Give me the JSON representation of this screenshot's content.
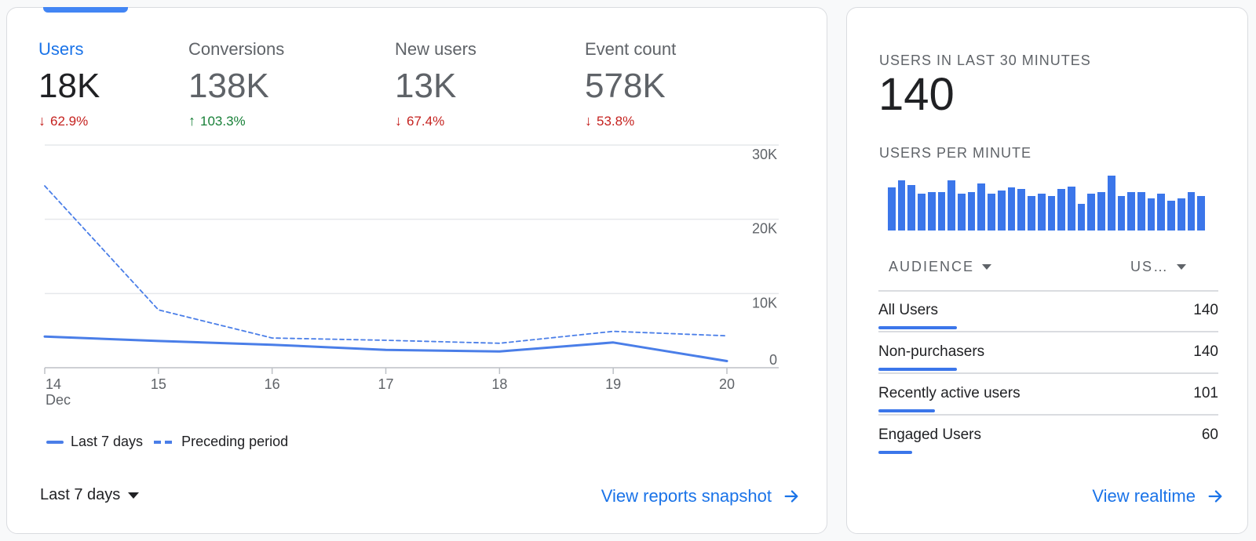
{
  "overview": {
    "metrics": [
      {
        "label": "Users",
        "value": "18K",
        "delta": "62.9%",
        "direction": "down",
        "active": true
      },
      {
        "label": "Conversions",
        "value": "138K",
        "delta": "103.3%",
        "direction": "up",
        "active": false
      },
      {
        "label": "New users",
        "value": "13K",
        "delta": "67.4%",
        "direction": "down",
        "active": false
      },
      {
        "label": "Event count",
        "value": "578K",
        "delta": "53.8%",
        "direction": "down",
        "active": false
      }
    ],
    "legend": {
      "current": "Last 7 days",
      "previous": "Preceding period"
    },
    "date_range": "Last 7 days",
    "snapshot_link": "View reports snapshot"
  },
  "chart_data": {
    "type": "line",
    "x": [
      "14",
      "15",
      "16",
      "17",
      "18",
      "19",
      "20"
    ],
    "x_sublabel": "Dec",
    "y_ticks": [
      "30K",
      "20K",
      "10K",
      "0"
    ],
    "ylim": [
      0,
      30000
    ],
    "series": [
      {
        "name": "Last 7 days",
        "style": "solid",
        "values": [
          4200,
          3600,
          3100,
          2400,
          2200,
          3400,
          900
        ]
      },
      {
        "name": "Preceding period",
        "style": "dashed",
        "values": [
          24500,
          7800,
          4000,
          3700,
          3300,
          4900,
          4300
        ]
      }
    ],
    "grid": true,
    "legend_position": "bottom-left",
    "color": "#4a7ee8"
  },
  "realtime": {
    "title": "USERS IN LAST 30 MINUTES",
    "value": "140",
    "per_minute_label": "USERS PER MINUTE",
    "per_minute": [
      65,
      75,
      68,
      55,
      58,
      58,
      75,
      55,
      58,
      70,
      55,
      60,
      65,
      62,
      52,
      55,
      52,
      62,
      66,
      40,
      55,
      58,
      82,
      52,
      58,
      58,
      48,
      55,
      45,
      48,
      58,
      52
    ],
    "dropdown_audience": "AUDIENCE",
    "dropdown_metric": "US…",
    "rows": [
      {
        "name": "All Users",
        "value": "140",
        "fraction": 1.0
      },
      {
        "name": "Non-purchasers",
        "value": "140",
        "fraction": 1.0
      },
      {
        "name": "Recently active users",
        "value": "101",
        "fraction": 0.72
      },
      {
        "name": "Engaged Users",
        "value": "60",
        "fraction": 0.43
      }
    ],
    "link": "View realtime"
  },
  "colors": {
    "accent": "#1a73e8",
    "bar": "#3b76ea",
    "down": "#c5221f",
    "up": "#188038"
  }
}
